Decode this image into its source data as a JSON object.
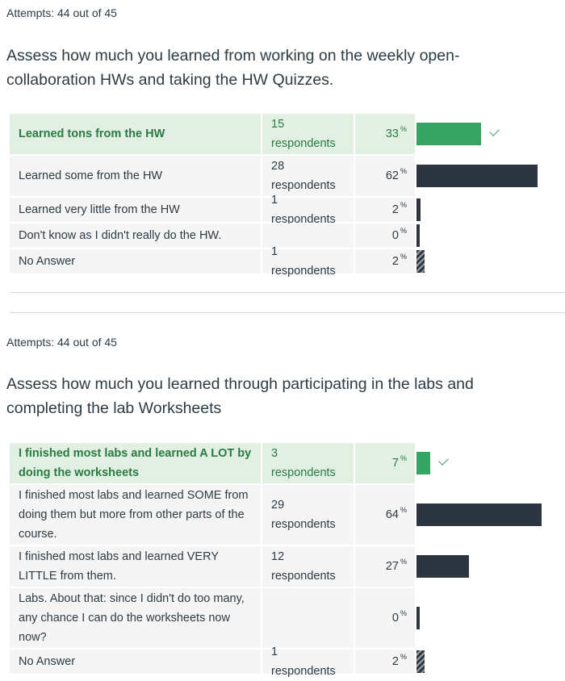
{
  "pct_sign": "%",
  "q1": {
    "attempts": "Attempts: 44 out of 45",
    "question": "Assess how much you learned from working on the weekly open-collaboration HWs and taking the HW Quizzes.",
    "answers": [
      {
        "label": "Learned tons from the HW",
        "respondents": "15 respondents",
        "percent": "33",
        "value": 33,
        "correct": true
      },
      {
        "label": "Learned some from the HW",
        "respondents": "28 respondents",
        "percent": "62",
        "value": 62,
        "correct": false
      },
      {
        "label": "Learned very little from the HW",
        "respondents": "1 respondents",
        "percent": "2",
        "value": 2,
        "correct": false
      },
      {
        "label": "Don't know as I didn't really do the HW.",
        "respondents": "",
        "percent": "0",
        "value": 0,
        "correct": false
      },
      {
        "label": "No Answer",
        "respondents": "1 respondents",
        "percent": "2",
        "value": 2,
        "correct": false
      }
    ]
  },
  "q2": {
    "attempts": "Attempts: 44 out of 45",
    "question": "Assess how much you learned through participating in the labs and completing the lab Worksheets",
    "answers": [
      {
        "label": "I finished most labs and learned A LOT by doing the worksheets",
        "respondents": "3 respondents",
        "percent": "7",
        "value": 7,
        "correct": true
      },
      {
        "label": "I finished most labs and learned SOME from doing them but more from other parts of the course.",
        "respondents": "29 respondents",
        "percent": "64",
        "value": 64,
        "correct": false
      },
      {
        "label": "I finished most labs and learned VERY LITTLE from them.",
        "respondents": "12 respondents",
        "percent": "27",
        "value": 27,
        "correct": false
      },
      {
        "label": "Labs. About that: since I didn't do too many, any chance I can do the worksheets now now?",
        "respondents": "",
        "percent": "0",
        "value": 0,
        "correct": false
      },
      {
        "label": "No Answer",
        "respondents": "1 respondents",
        "percent": "2",
        "value": 2,
        "correct": false
      }
    ]
  },
  "colors": {
    "correct": "#38a463",
    "bar": "#2d3540",
    "correct_bg": "#e1f0e3",
    "row_bg": "#f5f5f5"
  }
}
